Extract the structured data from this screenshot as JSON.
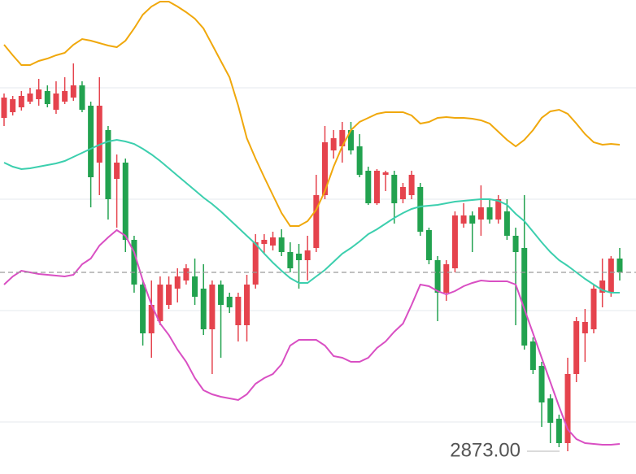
{
  "chart_data": {
    "type": "candlestick",
    "ylim": [
      2867.4,
      2984
    ],
    "yticks": [
      2880.2,
      2907.6,
      2935,
      2962.4
    ],
    "grid": true,
    "up_color": "#e5434d",
    "down_color": "#22a24f",
    "open": [
      2955,
      2956.4,
      2957.6,
      2959,
      2959.6,
      2961.6,
      2957,
      2959,
      2960,
      2963,
      2958,
      2944,
      2952,
      2940,
      2944,
      2925,
      2914,
      2902,
      2905,
      2909,
      2913,
      2915,
      2916,
      2913,
      2903,
      2914,
      2911,
      2904,
      2904,
      2914,
      2924,
      2923.6,
      2925.6,
      2922,
      2921.6,
      2920,
      2923,
      2936,
      2947,
      2948,
      2952,
      2948,
      2942,
      2934,
      2941,
      2941,
      2935,
      2936,
      2938,
      2927.4,
      2920,
      2912,
      2918,
      2929,
      2931,
      2930,
      2933,
      2930,
      2932,
      2926,
      2923,
      2900,
      2894,
      2886,
      2881,
      2875,
      2892,
      2902,
      2903,
      2912,
      2912,
      2920.4
    ],
    "high": [
      2961,
      2960.4,
      2961.6,
      2962.4,
      2964.6,
      2963,
      2964,
      2965,
      2968.4,
      2964,
      2959,
      2965,
      2953,
      2946,
      2945,
      2926,
      2915,
      2915,
      2916,
      2916,
      2918,
      2919,
      2920.4,
      2919,
      2915,
      2915,
      2912,
      2912,
      2916.4,
      2926.4,
      2926.4,
      2927,
      2927.6,
      2924.4,
      2924,
      2926,
      2941,
      2953,
      2952,
      2954,
      2954,
      2951,
      2943,
      2942.4,
      2942,
      2942,
      2939,
      2942,
      2939,
      2928,
      2921,
      2920,
      2932,
      2934,
      2932,
      2938.4,
      2935,
      2936,
      2935,
      2928,
      2936,
      2901,
      2895,
      2887,
      2882,
      2896,
      2906,
      2908,
      2914,
      2920.4,
      2921,
      2923
    ],
    "low": [
      2953,
      2955.6,
      2956.8,
      2958.4,
      2958,
      2957.6,
      2956,
      2958.4,
      2959.2,
      2956.4,
      2933,
      2936,
      2930,
      2928,
      2922,
      2912,
      2899,
      2896,
      2904,
      2908,
      2909.6,
      2914,
      2909,
      2901.6,
      2892,
      2896,
      2907,
      2900,
      2900,
      2913,
      2921.6,
      2922.4,
      2921,
      2917,
      2913,
      2915,
      2922,
      2935,
      2945,
      2944,
      2946,
      2940.4,
      2933.6,
      2933.6,
      2937,
      2929,
      2934,
      2935,
      2926,
      2919,
      2905,
      2910,
      2917,
      2928,
      2922,
      2926,
      2929,
      2929,
      2925,
      2904,
      2898,
      2892,
      2879,
      2875,
      2874,
      2873,
      2890,
      2895,
      2902,
      2908.4,
      2911,
      2915
    ],
    "close": [
      2960,
      2959.6,
      2960.4,
      2961,
      2962,
      2958.4,
      2961,
      2961.6,
      2963,
      2957,
      2940.4,
      2958,
      2935,
      2944,
      2925,
      2914,
      2902,
      2909,
      2914,
      2914,
      2916,
      2918,
      2911,
      2903,
      2914,
      2909,
      2908.4,
      2911,
      2914,
      2924.4,
      2925,
      2925.6,
      2922,
      2918,
      2920,
      2922.4,
      2936,
      2949,
      2950,
      2952,
      2947,
      2941,
      2934,
      2942,
      2941.6,
      2934,
      2938,
      2941,
      2927,
      2920,
      2912,
      2919,
      2931,
      2931,
      2929,
      2933,
      2930,
      2935,
      2926,
      2922,
      2899,
      2893,
      2885,
      2880,
      2875,
      2892,
      2905,
      2904.8,
      2913,
      2915,
      2920.4,
      2917
    ],
    "series": [
      {
        "color": "#f0a80c",
        "values": [
          2973,
          2970.4,
          2968,
          2968,
          2969,
          2969.6,
          2970.4,
          2971,
          2973,
          2974.4,
          2974,
          2973.4,
          2972.8,
          2972.4,
          2974,
          2977,
          2980.4,
          2982.4,
          2983.6,
          2983.6,
          2982.4,
          2981,
          2979.4,
          2977,
          2973,
          2969,
          2965,
          2958,
          2950,
          2945,
          2940.4,
          2936,
          2931.6,
          2928.4,
          2928.4,
          2929.6,
          2932.4,
          2937,
          2943,
          2948,
          2952,
          2954,
          2955,
          2956,
          2956.4,
          2956.4,
          2956.4,
          2955.6,
          2953.6,
          2954,
          2955,
          2955.2,
          2955,
          2955,
          2954.8,
          2954.4,
          2953.6,
          2951.6,
          2949.6,
          2948,
          2949.6,
          2952,
          2955,
          2956.6,
          2957,
          2956,
          2953.6,
          2951,
          2949,
          2948.4,
          2948.6,
          2948.4
        ]
      },
      {
        "color": "#3ccfae",
        "values": [
          2944,
          2943,
          2942.4,
          2942.6,
          2943,
          2943.4,
          2943.8,
          2944.4,
          2945.4,
          2946.4,
          2947.4,
          2948.4,
          2949.2,
          2949.6,
          2949.2,
          2948.6,
          2947.4,
          2946,
          2944.4,
          2942.6,
          2940.8,
          2939,
          2937.2,
          2935.4,
          2933.8,
          2932,
          2930,
          2928,
          2926,
          2924,
          2921.6,
          2919.4,
          2917.4,
          2915.6,
          2914.4,
          2914.4,
          2916,
          2917.6,
          2919.6,
          2921.6,
          2923,
          2924.6,
          2926.4,
          2927.6,
          2929,
          2930.4,
          2931.6,
          2932.6,
          2933.2,
          2933.4,
          2933.6,
          2934,
          2934.4,
          2934.6,
          2934.8,
          2935,
          2935,
          2934.6,
          2933.6,
          2931.4,
          2929.6,
          2927,
          2924.4,
          2922,
          2920,
          2918.6,
          2917,
          2915.4,
          2914,
          2912.6,
          2912,
          2912
        ]
      },
      {
        "color": "#d94fc3",
        "values": [
          2914,
          2916,
          2917.4,
          2917,
          2916.6,
          2916.4,
          2916.2,
          2916,
          2916.4,
          2919,
          2920.4,
          2923.6,
          2925.6,
          2927.4,
          2926,
          2922,
          2915,
          2909,
          2904.4,
          2901.6,
          2898,
          2895,
          2891,
          2888,
          2887,
          2886.4,
          2886,
          2885.6,
          2887,
          2889.6,
          2891,
          2892,
          2894.4,
          2899,
          2900.4,
          2900.4,
          2900.4,
          2899,
          2896.4,
          2896,
          2895,
          2895,
          2896,
          2898.4,
          2900,
          2902.4,
          2904.4,
          2909,
          2914,
          2913.6,
          2912.4,
          2911.6,
          2912.4,
          2913.6,
          2914.4,
          2915,
          2914.8,
          2914.8,
          2914.8,
          2914,
          2908,
          2902,
          2896,
          2890,
          2884,
          2878.4,
          2876,
          2875,
          2874.8,
          2874.6,
          2874.6,
          2874.8
        ]
      }
    ],
    "low_label": {
      "value": 2873,
      "label": "2873.00"
    }
  }
}
